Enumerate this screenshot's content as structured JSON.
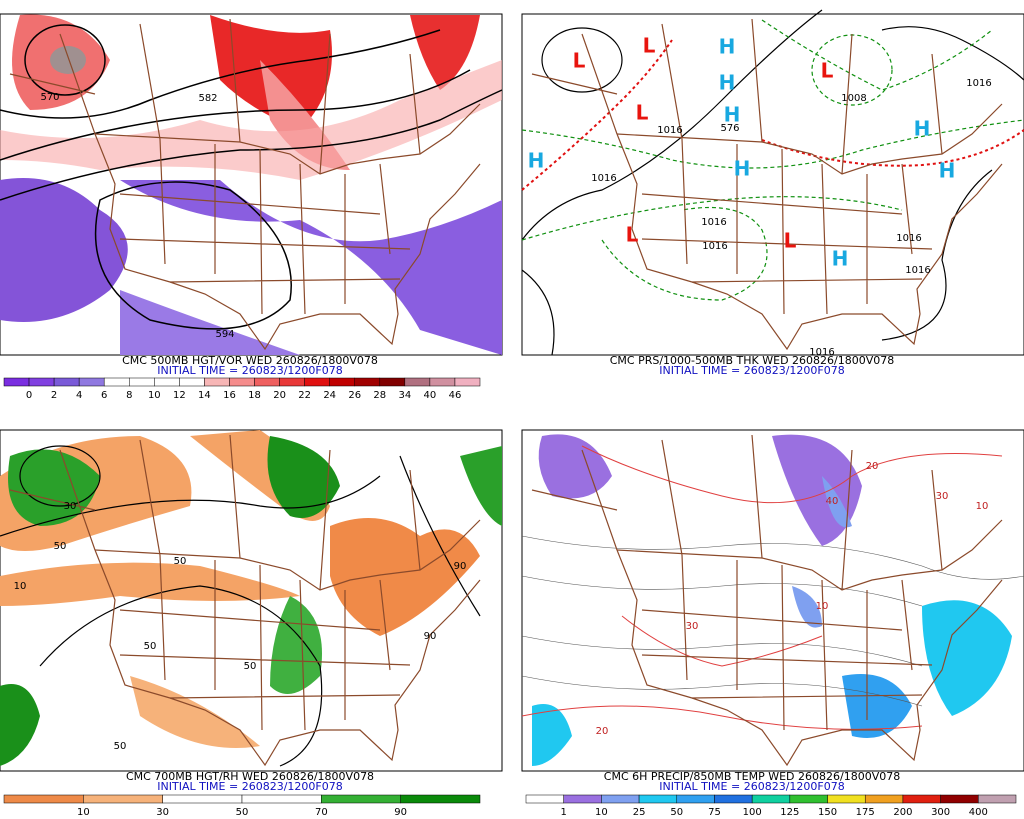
{
  "panels": [
    {
      "title": "CMC 500MB HGT/VOR WED 260826/1800V078",
      "subtitle": "INITIAL TIME = 260823/1200F078",
      "contour_labels": [
        "570",
        "582",
        "594"
      ],
      "colorbar": {
        "labels": [
          "0",
          "2",
          "4",
          "6",
          "8",
          "10",
          "12",
          "14",
          "16",
          "18",
          "20",
          "22",
          "24",
          "26",
          "28",
          "34",
          "40",
          "46"
        ],
        "colors": [
          "#7a2ee0",
          "#8040e0",
          "#7a5ad8",
          "#8f78e0",
          "#ffffff",
          "#ffffff",
          "#ffffff",
          "#ffffff",
          "#f7b6b6",
          "#f58c8c",
          "#ef6060",
          "#e83838",
          "#e01010",
          "#c00000",
          "#a00000",
          "#800000",
          "#b07080",
          "#d090a0",
          "#f0b0c0"
        ]
      }
    },
    {
      "title": "CMC PRS/1000-500MB THK WED 260826/1800V078",
      "subtitle": "INITIAL TIME = 260823/1200F078",
      "contour_labels": [
        "1008",
        "1016",
        "1016",
        "1016",
        "1016",
        "1016",
        "1016",
        "1016",
        "576",
        "1016"
      ],
      "pressure_centers": [
        {
          "label": "L",
          "color": "#e8140e"
        },
        {
          "label": "L",
          "color": "#e8140e"
        },
        {
          "label": "L",
          "color": "#e8140e"
        },
        {
          "label": "L",
          "color": "#e8140e"
        },
        {
          "label": "L",
          "color": "#e8140e"
        },
        {
          "label": "L",
          "color": "#e8140e"
        },
        {
          "label": "H",
          "color": "#18a8e0"
        },
        {
          "label": "H",
          "color": "#18a8e0"
        },
        {
          "label": "H",
          "color": "#18a8e0"
        },
        {
          "label": "H",
          "color": "#18a8e0"
        },
        {
          "label": "H",
          "color": "#18a8e0"
        },
        {
          "label": "H",
          "color": "#18a8e0"
        },
        {
          "label": "H",
          "color": "#18a8e0"
        },
        {
          "label": "H",
          "color": "#18a8e0"
        }
      ]
    },
    {
      "title": "CMC 700MB HGT/RH WED 260826/1800V078",
      "subtitle": "INITIAL TIME = 260823/1200F078",
      "contour_labels": [
        "50",
        "50",
        "50",
        "90",
        "30",
        "10",
        "50",
        "90",
        "50"
      ],
      "colorbar": {
        "labels": [
          "10",
          "30",
          "50",
          "70",
          "90"
        ],
        "colors": [
          "#ee8a48",
          "#f6b27a",
          "#ffffff",
          "#ffffff",
          "#34b034",
          "#0a8a0a"
        ]
      }
    },
    {
      "title": "CMC 6H PRECIP/850MB TEMP WED 260826/1800V078",
      "subtitle": "INITIAL TIME = 260823/1200F078",
      "contour_labels": [
        "20",
        "30",
        "10",
        "40",
        "20",
        "30",
        "10"
      ],
      "colorbar": {
        "labels": [
          "1",
          "10",
          "25",
          "50",
          "75",
          "100",
          "125",
          "150",
          "175",
          "200",
          "300",
          "400"
        ],
        "colors": [
          "#ffffff",
          "#9a70e0",
          "#7fa0f0",
          "#20c8f0",
          "#30a0f0",
          "#2070e0",
          "#10d0a0",
          "#30c030",
          "#f0e020",
          "#f0a020",
          "#e02010",
          "#900000",
          "#c0a0b0"
        ]
      }
    }
  ]
}
